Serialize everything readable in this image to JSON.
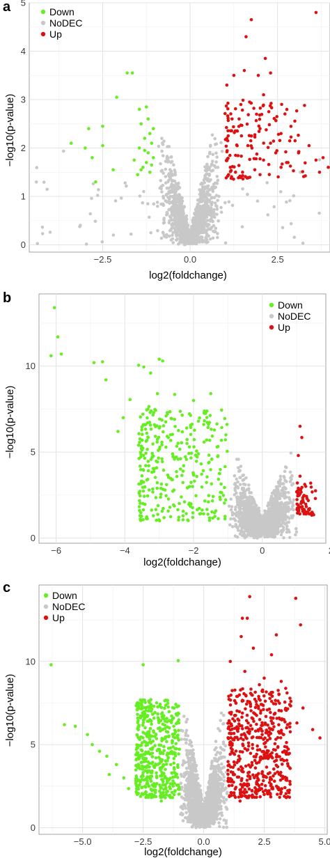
{
  "chart_data": [
    {
      "panel_letter": "a",
      "type": "scatter",
      "xlabel": "log2(foldchange)",
      "ylabel": "−log10(p-value)",
      "xlim": [
        -4.6,
        4.0
      ],
      "ylim": [
        -0.15,
        5.0
      ],
      "xticks": [
        -2.5,
        0.0,
        2.5
      ],
      "xtick_labels": [
        "−2.5",
        "0.0",
        "2.5"
      ],
      "yticks": [
        0,
        1,
        2,
        3,
        4,
        5
      ],
      "ytick_labels": [
        "0",
        "1",
        "2",
        "3",
        "4",
        "5"
      ],
      "grid": true,
      "legend_position": "top-left",
      "threshold_log2fc": 1,
      "colors": {
        "Down": "#66ee22",
        "NoDEC": "#c8c8c8",
        "Up": "#dd1111"
      },
      "series": [
        {
          "name": "Down",
          "points": [
            [
              -1.8,
              3.55
            ],
            [
              -1.65,
              3.55
            ],
            [
              -2.1,
              3.05
            ],
            [
              -1.25,
              2.85
            ],
            [
              -1.45,
              2.8
            ],
            [
              -2.9,
              2.4
            ],
            [
              -2.5,
              2.45
            ],
            [
              -3.4,
              2.1
            ],
            [
              -3.0,
              2.0
            ],
            [
              -2.5,
              2.05
            ],
            [
              -2.8,
              1.8
            ],
            [
              -2.2,
              1.55
            ],
            [
              -1.6,
              1.75
            ],
            [
              -2.7,
              1.3
            ],
            [
              -1.2,
              2.6
            ],
            [
              -1.4,
              2.5
            ],
            [
              -1.3,
              2.2
            ],
            [
              -1.1,
              2.1
            ],
            [
              -1.2,
              1.9
            ],
            [
              -1.35,
              1.6
            ],
            [
              -1.15,
              1.5
            ],
            [
              -1.5,
              1.45
            ],
            [
              -1.05,
              2.4
            ],
            [
              -1.4,
              1.55
            ],
            [
              -1.25,
              1.7
            ],
            [
              -1.1,
              1.65
            ],
            [
              -1.3,
              1.95
            ],
            [
              -1.15,
              2.3
            ],
            [
              -1.45,
              2.0
            ],
            [
              -1.05,
              1.8
            ]
          ]
        },
        {
          "name": "NoDEC",
          "gen": {
            "seed": 11,
            "n": 1200,
            "spread": 0.85,
            "xmin": -4.4,
            "xmax": 3.8,
            "ymin": 0,
            "ymax": 3.6,
            "cut": 1,
            "vshape": 0.08
          }
        },
        {
          "name": "Up",
          "points": [
            [
              3.6,
              4.8
            ],
            [
              1.75,
              4.65
            ],
            [
              1.6,
              4.3
            ],
            [
              2.15,
              3.85
            ],
            [
              1.55,
              3.6
            ],
            [
              1.95,
              3.5
            ],
            [
              2.3,
              3.55
            ],
            [
              1.25,
              3.5
            ],
            [
              2.1,
              3.1
            ],
            [
              1.05,
              3.3
            ],
            [
              1.45,
              2.9
            ],
            [
              1.9,
              2.7
            ],
            [
              1.7,
              2.95
            ],
            [
              1.2,
              2.6
            ],
            [
              2.0,
              2.4
            ],
            [
              2.6,
              2.3
            ],
            [
              1.35,
              2.35
            ],
            [
              1.05,
              2.2
            ],
            [
              2.3,
              2.1
            ],
            [
              3.0,
              2.15
            ],
            [
              3.4,
              2.05
            ],
            [
              3.8,
              1.8
            ],
            [
              3.6,
              1.75
            ],
            [
              3.95,
              1.6
            ],
            [
              3.7,
              1.5
            ],
            [
              2.8,
              1.7
            ],
            [
              1.15,
              1.6
            ],
            [
              1.5,
              1.5
            ],
            [
              1.85,
              1.55
            ],
            [
              2.1,
              1.75
            ],
            [
              2.45,
              1.9
            ],
            [
              1.3,
              1.85
            ],
            [
              1.65,
              2.05
            ],
            [
              1.1,
              1.45
            ],
            [
              2.0,
              1.45
            ],
            [
              2.6,
              1.6
            ],
            [
              3.1,
              1.9
            ],
            [
              1.4,
              2.6
            ],
            [
              1.75,
              2.25
            ],
            [
              2.25,
              2.75
            ]
          ],
          "gen": {
            "seed": 23,
            "n": 120,
            "xmin": 1.0,
            "xmax": 3.3,
            "ymin": 1.35,
            "ymax": 3.0
          }
        }
      ]
    },
    {
      "panel_letter": "b",
      "type": "scatter",
      "xlabel": "log2(foldchange)",
      "ylabel": "−log10(p-value)",
      "xlim": [
        -6.5,
        1.85
      ],
      "ylim": [
        -0.3,
        14.2
      ],
      "xticks": [
        -6,
        -4,
        -2,
        0,
        2
      ],
      "xtick_labels": [
        "−6",
        "−4",
        "−2",
        "0",
        "2"
      ],
      "yticks": [
        0,
        5,
        10
      ],
      "ytick_labels": [
        "0",
        "5",
        "10"
      ],
      "grid": true,
      "legend_position": "top-right",
      "threshold_log2fc": 1,
      "colors": {
        "Down": "#66ee22",
        "NoDEC": "#c8c8c8",
        "Up": "#dd1111"
      },
      "series": [
        {
          "name": "Down",
          "points": [
            [
              -6.05,
              13.4
            ],
            [
              -5.95,
              11.7
            ],
            [
              -5.85,
              10.7
            ],
            [
              -6.15,
              10.6
            ],
            [
              -4.9,
              10.2
            ],
            [
              -4.65,
              10.25
            ],
            [
              -4.55,
              9.2
            ],
            [
              -3.6,
              10.05
            ],
            [
              -3.45,
              9.95
            ],
            [
              -3.0,
              10.4
            ],
            [
              -2.9,
              10.3
            ],
            [
              -3.25,
              9.6
            ],
            [
              -3.85,
              8.05
            ],
            [
              -3.3,
              7.65
            ],
            [
              -4.05,
              7.0
            ],
            [
              -4.2,
              6.2
            ],
            [
              -3.05,
              8.4
            ],
            [
              -2.55,
              8.35
            ],
            [
              -2.8,
              7.1
            ],
            [
              -2.95,
              2.55
            ],
            [
              -2.0,
              8.0
            ],
            [
              -1.5,
              8.4
            ],
            [
              -1.65,
              7.25
            ],
            [
              -2.2,
              6.4
            ],
            [
              -3.6,
              5.4
            ]
          ],
          "gen": {
            "seed": 37,
            "n": 330,
            "xmin": -3.6,
            "xmax": -1.0,
            "ymin": 1.0,
            "ymax": 7.5
          }
        },
        {
          "name": "NoDEC",
          "gen": {
            "seed": 41,
            "n": 1500,
            "spread": 0.95,
            "xmin": -1.0,
            "xmax": 1.0,
            "ymin": 0,
            "ymax": 6.3,
            "cut": 1,
            "vshape": 0.2
          }
        },
        {
          "name": "Up",
          "points": [
            [
              1.1,
              6.5
            ],
            [
              1.15,
              5.85
            ],
            [
              1.05,
              4.8
            ],
            [
              1.1,
              3.6
            ],
            [
              1.55,
              2.75
            ],
            [
              1.3,
              2.3
            ],
            [
              1.2,
              1.6
            ],
            [
              1.45,
              1.5
            ],
            [
              1.05,
              2.9
            ]
          ],
          "gen": {
            "seed": 53,
            "n": 60,
            "xmin": 1.0,
            "xmax": 1.55,
            "ymin": 1.3,
            "ymax": 3.3
          }
        }
      ]
    },
    {
      "panel_letter": "c",
      "type": "scatter",
      "xlabel": "log2(foldchange)",
      "ylabel": "−log10(p-value)",
      "xlim": [
        -6.8,
        5.1
      ],
      "ylim": [
        -0.4,
        14.6
      ],
      "xticks": [
        -5.0,
        -2.5,
        0.0,
        2.5,
        5.0
      ],
      "xtick_labels": [
        "−5.0",
        "−2.5",
        "0.0",
        "2.5",
        "5.0"
      ],
      "yticks": [
        0,
        5,
        10
      ],
      "ytick_labels": [
        "0",
        "5",
        "10"
      ],
      "grid": true,
      "legend_position": "top-left",
      "threshold_log2fc": 1,
      "colors": {
        "Down": "#66ee22",
        "NoDEC": "#c8c8c8",
        "Up": "#dd1111"
      },
      "series": [
        {
          "name": "Down",
          "points": [
            [
              -6.3,
              9.8
            ],
            [
              -5.75,
              6.2
            ],
            [
              -5.3,
              6.1
            ],
            [
              -4.8,
              5.6
            ],
            [
              -4.6,
              5.0
            ],
            [
              -4.3,
              4.6
            ],
            [
              -4.0,
              4.3
            ],
            [
              -3.6,
              3.8
            ],
            [
              -3.9,
              3.2
            ],
            [
              -3.3,
              3.0
            ],
            [
              -2.5,
              9.8
            ],
            [
              -1.05,
              10.05
            ],
            [
              -2.8,
              2.8
            ],
            [
              -3.1,
              2.35
            ],
            [
              -2.5,
              2.0
            ],
            [
              -1.75,
              1.6
            ]
          ],
          "gen": {
            "seed": 61,
            "n": 500,
            "xmin": -2.8,
            "xmax": -1.0,
            "ymin": 1.8,
            "ymax": 7.8
          }
        },
        {
          "name": "NoDEC",
          "gen": {
            "seed": 67,
            "n": 1600,
            "spread": 0.95,
            "xmin": -1.0,
            "xmax": 1.0,
            "ymin": 0,
            "ymax": 9.4,
            "cut": 1,
            "vshape": 0.15
          }
        },
        {
          "name": "Up",
          "points": [
            [
              1.9,
              13.9
            ],
            [
              1.6,
              12.6
            ],
            [
              1.8,
              12.6
            ],
            [
              1.55,
              11.5
            ],
            [
              3.8,
              13.8
            ],
            [
              4.0,
              12.2
            ],
            [
              3.0,
              11.6
            ],
            [
              2.8,
              10.4
            ],
            [
              2.05,
              10.8
            ],
            [
              3.2,
              8.8
            ],
            [
              3.6,
              7.6
            ],
            [
              4.1,
              7.2
            ],
            [
              4.5,
              5.9
            ],
            [
              4.8,
              5.4
            ],
            [
              3.85,
              6.3
            ],
            [
              3.3,
              5.6
            ],
            [
              3.05,
              3.35
            ],
            [
              2.8,
              2.9
            ],
            [
              1.5,
              1.6
            ],
            [
              1.1,
              10.0
            ],
            [
              1.7,
              9.4
            ],
            [
              2.3,
              8.6
            ],
            [
              2.5,
              9.0
            ]
          ],
          "gen": {
            "seed": 71,
            "n": 520,
            "xmin": 1.0,
            "xmax": 3.6,
            "ymin": 1.8,
            "ymax": 8.4
          }
        }
      ]
    }
  ],
  "legend": {
    "items": [
      {
        "label": "Down",
        "color": "#66ee22"
      },
      {
        "label": "NoDEC",
        "color": "#c8c8c8"
      },
      {
        "label": "Up",
        "color": "#dd1111"
      }
    ]
  }
}
